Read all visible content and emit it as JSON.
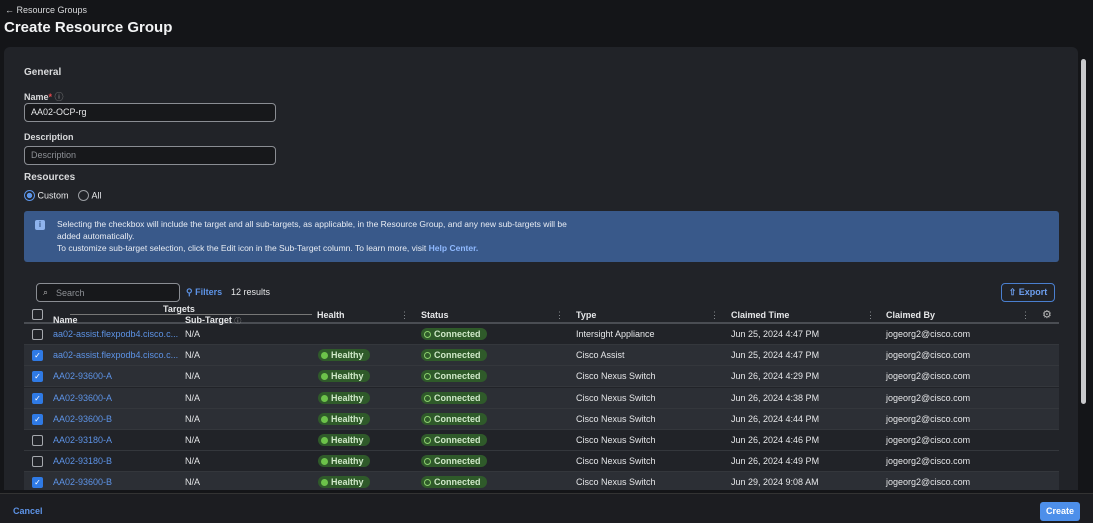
{
  "header": {
    "back_label": "Resource Groups",
    "title": "Create Resource Group"
  },
  "general": {
    "section": "General",
    "name_label": "Name",
    "name_required": "*",
    "name_value": "AA02-OCP-rg",
    "description_label": "Description",
    "description_placeholder": "Description"
  },
  "resources": {
    "section": "Resources",
    "options": [
      "Custom",
      "All"
    ],
    "selected": "Custom"
  },
  "info": {
    "line1": "Selecting the checkbox will include the target and all sub-targets, as applicable, in the Resource Group, and any new sub-targets will be",
    "line2": "added automatically.",
    "line3": "To customize sub-target selection, click the Edit icon in the Sub-Target column. To learn more, visit",
    "link": "Help Center."
  },
  "toolbar": {
    "search_placeholder": "Search",
    "filters": "Filters",
    "results": "12 results",
    "export": "Export"
  },
  "table": {
    "group_header": "Targets",
    "columns": [
      "Name",
      "Sub-Target",
      "Health",
      "Status",
      "Type",
      "Claimed Time",
      "Claimed By"
    ],
    "rows": [
      {
        "checked": false,
        "name": "aa02-assist.flexpodb4.cisco.c...",
        "sub": "N/A",
        "health": "",
        "status": "Connected",
        "type": "Intersight Appliance",
        "time": "Jun 25, 2024 4:47 PM",
        "by": "jogeorg2@cisco.com"
      },
      {
        "checked": true,
        "name": "aa02-assist.flexpodb4.cisco.c...",
        "sub": "N/A",
        "health": "Healthy",
        "status": "Connected",
        "type": "Cisco Assist",
        "time": "Jun 25, 2024 4:47 PM",
        "by": "jogeorg2@cisco.com"
      },
      {
        "checked": true,
        "name": "AA02-93600-A",
        "sub": "N/A",
        "health": "Healthy",
        "status": "Connected",
        "type": "Cisco Nexus Switch",
        "time": "Jun 26, 2024 4:29 PM",
        "by": "jogeorg2@cisco.com"
      },
      {
        "checked": true,
        "name": "AA02-93600-A",
        "sub": "N/A",
        "health": "Healthy",
        "status": "Connected",
        "type": "Cisco Nexus Switch",
        "time": "Jun 26, 2024 4:38 PM",
        "by": "jogeorg2@cisco.com"
      },
      {
        "checked": true,
        "name": "AA02-93600-B",
        "sub": "N/A",
        "health": "Healthy",
        "status": "Connected",
        "type": "Cisco Nexus Switch",
        "time": "Jun 26, 2024 4:44 PM",
        "by": "jogeorg2@cisco.com"
      },
      {
        "checked": false,
        "name": "AA02-93180-A",
        "sub": "N/A",
        "health": "Healthy",
        "status": "Connected",
        "type": "Cisco Nexus Switch",
        "time": "Jun 26, 2024 4:46 PM",
        "by": "jogeorg2@cisco.com"
      },
      {
        "checked": false,
        "name": "AA02-93180-B",
        "sub": "N/A",
        "health": "Healthy",
        "status": "Connected",
        "type": "Cisco Nexus Switch",
        "time": "Jun 26, 2024 4:49 PM",
        "by": "jogeorg2@cisco.com"
      },
      {
        "checked": true,
        "name": "AA02-93600-B",
        "sub": "N/A",
        "health": "Healthy",
        "status": "Connected",
        "type": "Cisco Nexus Switch",
        "time": "Jun 29, 2024 9:08 AM",
        "by": "jogeorg2@cisco.com"
      }
    ]
  },
  "footer": {
    "cancel": "Cancel",
    "create": "Create"
  },
  "colors": {
    "accent": "#2f7ae5",
    "info_bg": "#39598a",
    "healthy": "#6cc24a"
  }
}
